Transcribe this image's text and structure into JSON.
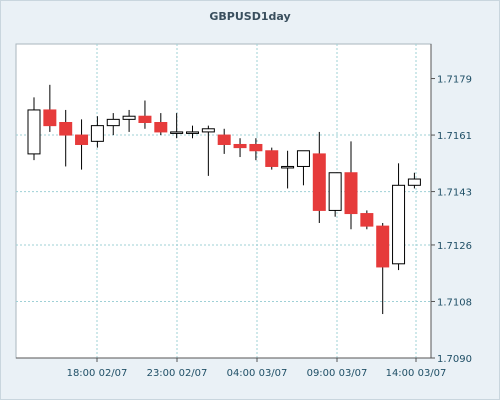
{
  "chart_data": {
    "type": "candlestick",
    "title": "GBPUSD1day",
    "colors": {
      "bullish_body": "#ffffff",
      "bearish_body": "#e63b3b",
      "grid": "#9fd0d6",
      "axis": "#555555"
    },
    "grid": true,
    "ylim": [
      1.709,
      1.719
    ],
    "y_ticks": [
      "1.7179",
      "1.7161",
      "1.7143",
      "1.7126",
      "1.7108",
      "1.7090"
    ],
    "x_ticks": [
      "18:00 02/07",
      "23:00 02/07",
      "04:00 03/07",
      "09:00 03/07",
      "14:00 03/07"
    ],
    "candles": [
      {
        "open": 1.7155,
        "high": 1.7173,
        "low": 1.7153,
        "close": 1.7169
      },
      {
        "open": 1.7169,
        "high": 1.7177,
        "low": 1.7162,
        "close": 1.7164
      },
      {
        "open": 1.7165,
        "high": 1.7169,
        "low": 1.7151,
        "close": 1.7161
      },
      {
        "open": 1.7161,
        "high": 1.7166,
        "low": 1.715,
        "close": 1.7158
      },
      {
        "open": 1.7159,
        "high": 1.7167,
        "low": 1.7157,
        "close": 1.7164
      },
      {
        "open": 1.7164,
        "high": 1.7168,
        "low": 1.7161,
        "close": 1.7166
      },
      {
        "open": 1.7166,
        "high": 1.7169,
        "low": 1.7162,
        "close": 1.7167
      },
      {
        "open": 1.7167,
        "high": 1.7172,
        "low": 1.7163,
        "close": 1.7165
      },
      {
        "open": 1.7165,
        "high": 1.7168,
        "low": 1.7161,
        "close": 1.7162
      },
      {
        "open": 1.7162,
        "high": 1.7168,
        "low": 1.716,
        "close": 1.7162
      },
      {
        "open": 1.7162,
        "high": 1.7164,
        "low": 1.716,
        "close": 1.7162
      },
      {
        "open": 1.7162,
        "high": 1.7164,
        "low": 1.7148,
        "close": 1.7163
      },
      {
        "open": 1.7161,
        "high": 1.7163,
        "low": 1.7155,
        "close": 1.7158
      },
      {
        "open": 1.7158,
        "high": 1.716,
        "low": 1.7154,
        "close": 1.7157
      },
      {
        "open": 1.7158,
        "high": 1.716,
        "low": 1.7153,
        "close": 1.7156
      },
      {
        "open": 1.7156,
        "high": 1.7157,
        "low": 1.715,
        "close": 1.7151
      },
      {
        "open": 1.7151,
        "high": 1.7156,
        "low": 1.7144,
        "close": 1.7151
      },
      {
        "open": 1.7151,
        "high": 1.7156,
        "low": 1.7145,
        "close": 1.7156
      },
      {
        "open": 1.7155,
        "high": 1.7162,
        "low": 1.7133,
        "close": 1.7137
      },
      {
        "open": 1.7137,
        "high": 1.7149,
        "low": 1.7135,
        "close": 1.7149
      },
      {
        "open": 1.7149,
        "high": 1.7159,
        "low": 1.7131,
        "close": 1.7136
      },
      {
        "open": 1.7136,
        "high": 1.7137,
        "low": 1.7131,
        "close": 1.7132
      },
      {
        "open": 1.7132,
        "high": 1.7133,
        "low": 1.7104,
        "close": 1.7119
      },
      {
        "open": 1.712,
        "high": 1.7152,
        "low": 1.7118,
        "close": 1.7145
      },
      {
        "open": 1.7145,
        "high": 1.7149,
        "low": 1.7144,
        "close": 1.7147
      }
    ]
  }
}
